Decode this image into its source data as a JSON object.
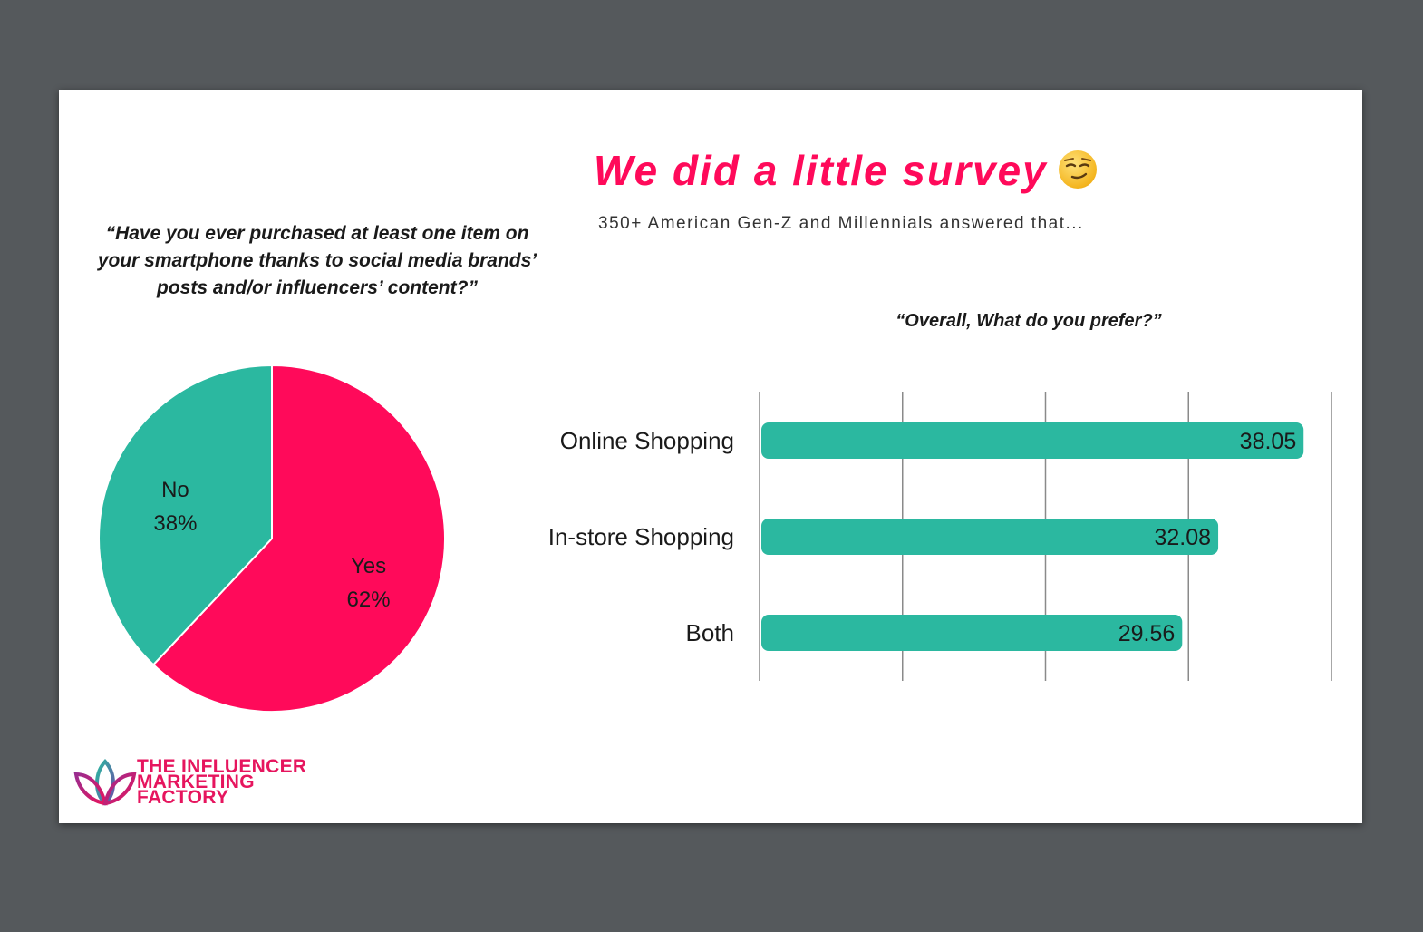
{
  "title": "We did a little survey",
  "title_emoji": "smirking-face-emoji",
  "subtitle": "350+ American Gen-Z and Millennials answered that...",
  "colors": {
    "pink": "#ff0a5a",
    "teal": "#2bb8a0"
  },
  "logo": {
    "line1": "THE INFLUENCER",
    "line2": "MARKETING",
    "line3": "FACTORY"
  },
  "chart_data": [
    {
      "type": "pie",
      "title": "“Have you ever purchased at least one item on your smartphone thanks to social media brands’ posts and/or influencers’ content?”",
      "slices": [
        {
          "label": "Yes",
          "value": 62,
          "value_label": "62%",
          "color": "#ff0a5a"
        },
        {
          "label": "No",
          "value": 38,
          "value_label": "38%",
          "color": "#2bb8a0"
        }
      ]
    },
    {
      "type": "bar",
      "orientation": "horizontal",
      "title": "“Overall, What do you prefer?”",
      "categories": [
        "Online Shopping",
        "In-store Shopping",
        "Both"
      ],
      "values": [
        38.05,
        32.08,
        29.56
      ],
      "value_labels": [
        "38.05",
        "32.08",
        "29.56"
      ],
      "xlim": [
        0,
        40
      ],
      "gridlines": [
        0,
        10,
        20,
        30,
        40
      ],
      "grid": true,
      "color": "#2bb8a0"
    }
  ]
}
